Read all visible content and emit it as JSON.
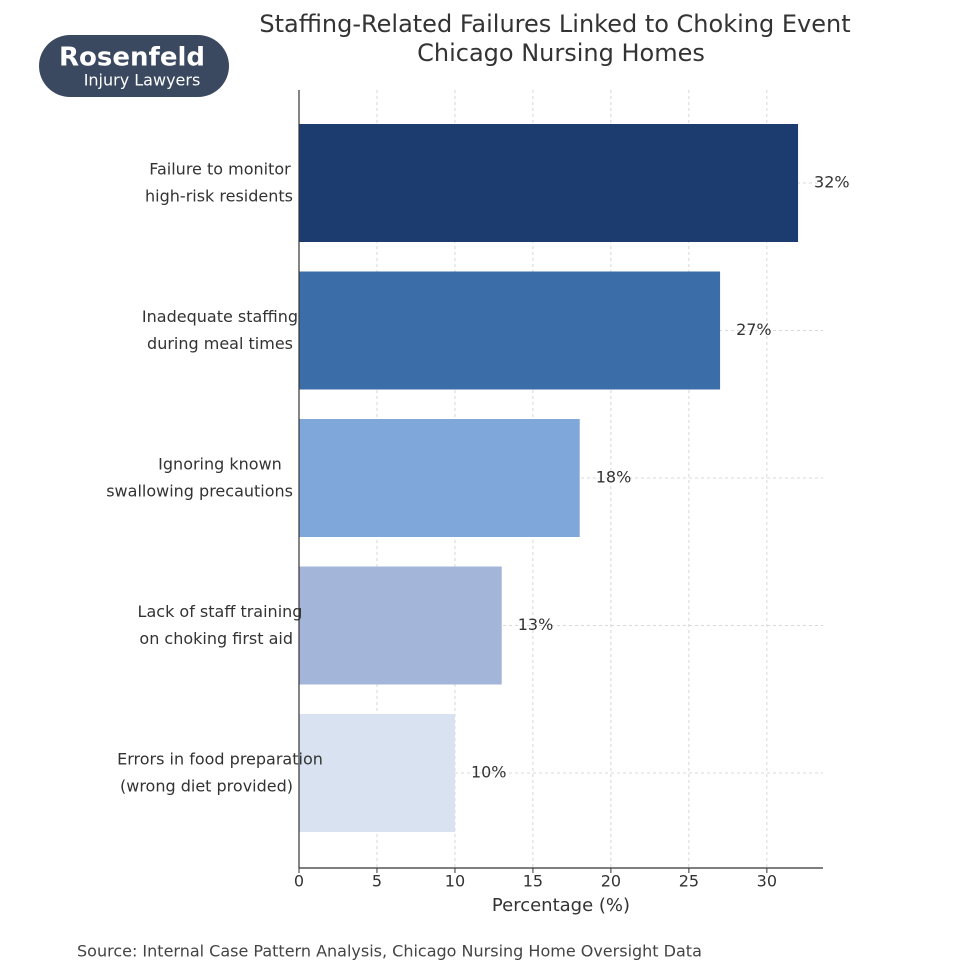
{
  "logo": {
    "name": "Rosenfeld",
    "tagline": "Injury Lawyers"
  },
  "chart_data": {
    "type": "barh",
    "title": [
      "Staffing-Related Failures Linked to Choking Event",
      "Chicago Nursing Homes"
    ],
    "categories": [
      [
        "Failure to monitor",
        "high-risk residents"
      ],
      [
        "Inadequate staffing",
        "during meal times"
      ],
      [
        "Ignoring known",
        "swallowing precautions"
      ],
      [
        "Lack of staff training",
        "on choking first aid"
      ],
      [
        "Errors in food preparation",
        "(wrong diet provided)"
      ]
    ],
    "values": [
      32,
      27,
      18,
      13,
      10
    ],
    "value_labels": [
      "32%",
      "27%",
      "18%",
      "13%",
      "10%"
    ],
    "colors": [
      "#1c3b6e",
      "#3b6ea8",
      "#7fa7d9",
      "#a3b6da",
      "#d8e2f0"
    ],
    "xlabel": "Percentage (%)",
    "xlim": [
      0,
      33.6
    ],
    "xticks": [
      0,
      5,
      10,
      15,
      20,
      25,
      30
    ],
    "grid": true,
    "source": "Source: Internal Case Pattern Analysis, Chicago Nursing Home Oversight Data"
  }
}
